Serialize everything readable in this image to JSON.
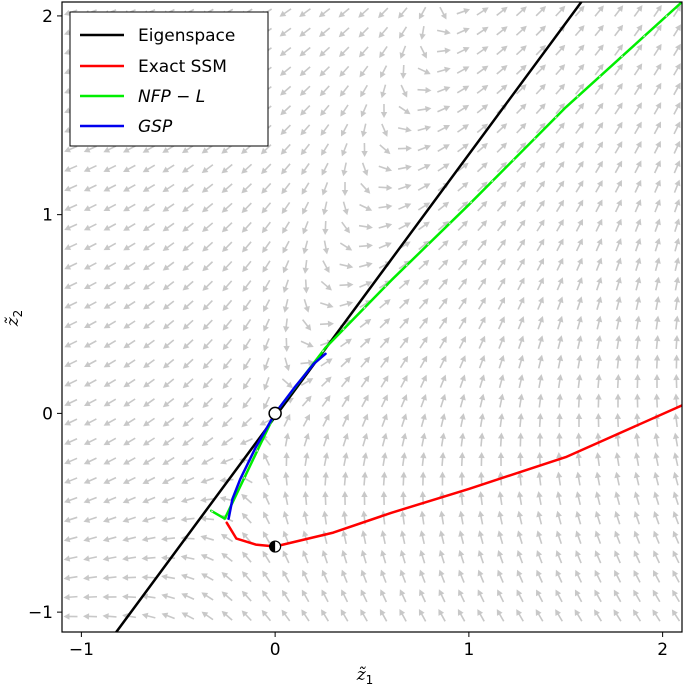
{
  "chart_data": {
    "type": "line",
    "title": "",
    "xlabel": {
      "base": "z̃",
      "sub": "1"
    },
    "ylabel": {
      "base": "z̃",
      "sub": "2"
    },
    "xlim": [
      -1.1,
      2.1
    ],
    "ylim": [
      -1.1,
      2.07
    ],
    "x_ticks": [
      {
        "value": -1,
        "label": "−1"
      },
      {
        "value": 0,
        "label": "0"
      },
      {
        "value": 1,
        "label": "1"
      },
      {
        "value": 2,
        "label": "2"
      }
    ],
    "y_ticks": [
      {
        "value": -1,
        "label": "−1"
      },
      {
        "value": 0,
        "label": "0"
      },
      {
        "value": 1,
        "label": "1"
      },
      {
        "value": 2,
        "label": "2"
      }
    ],
    "grid": false,
    "legend_position": "top-left",
    "vector_field": {
      "shown": true,
      "color": "#c8c8c8"
    },
    "series": [
      {
        "name": "Eigenspace",
        "color": "#000000",
        "style": "solid",
        "points": [
          [
            -0.82,
            -1.1
          ],
          [
            1.58,
            2.07
          ]
        ]
      },
      {
        "name": "Exact SSM",
        "color": "#ff0000",
        "style": "solid",
        "points": [
          [
            -0.25,
            -0.55
          ],
          [
            -0.2,
            -0.63
          ],
          [
            -0.1,
            -0.66
          ],
          [
            0.0,
            -0.67
          ],
          [
            0.3,
            -0.6
          ],
          [
            0.6,
            -0.5
          ],
          [
            1.0,
            -0.38
          ],
          [
            1.5,
            -0.22
          ],
          [
            2.1,
            0.04
          ]
        ]
      },
      {
        "name": "NFP − L",
        "color": "#00ee00",
        "style": "dashed",
        "points": [
          [
            -0.33,
            -0.49
          ],
          [
            -0.26,
            -0.53
          ],
          [
            0.0,
            0.0
          ],
          [
            0.26,
            0.33
          ],
          [
            0.6,
            0.67
          ],
          [
            1.0,
            1.05
          ],
          [
            1.5,
            1.54
          ],
          [
            2.1,
            2.07
          ]
        ]
      },
      {
        "name": "GSP",
        "color": "#0000ee",
        "style": "solid",
        "points": [
          [
            -0.24,
            -0.53
          ],
          [
            -0.22,
            -0.43
          ],
          [
            -0.18,
            -0.33
          ],
          [
            -0.1,
            -0.17
          ],
          [
            0.0,
            0.0
          ],
          [
            0.1,
            0.13
          ],
          [
            0.2,
            0.25
          ],
          [
            0.26,
            0.3
          ]
        ]
      }
    ],
    "markers": [
      {
        "name": "origin",
        "x": 0,
        "y": 0,
        "fill": "#ffffff",
        "edge": "#000000"
      },
      {
        "name": "half-filled",
        "x": 0,
        "y": -0.67,
        "fill": "half",
        "edge": "#000000"
      }
    ]
  }
}
